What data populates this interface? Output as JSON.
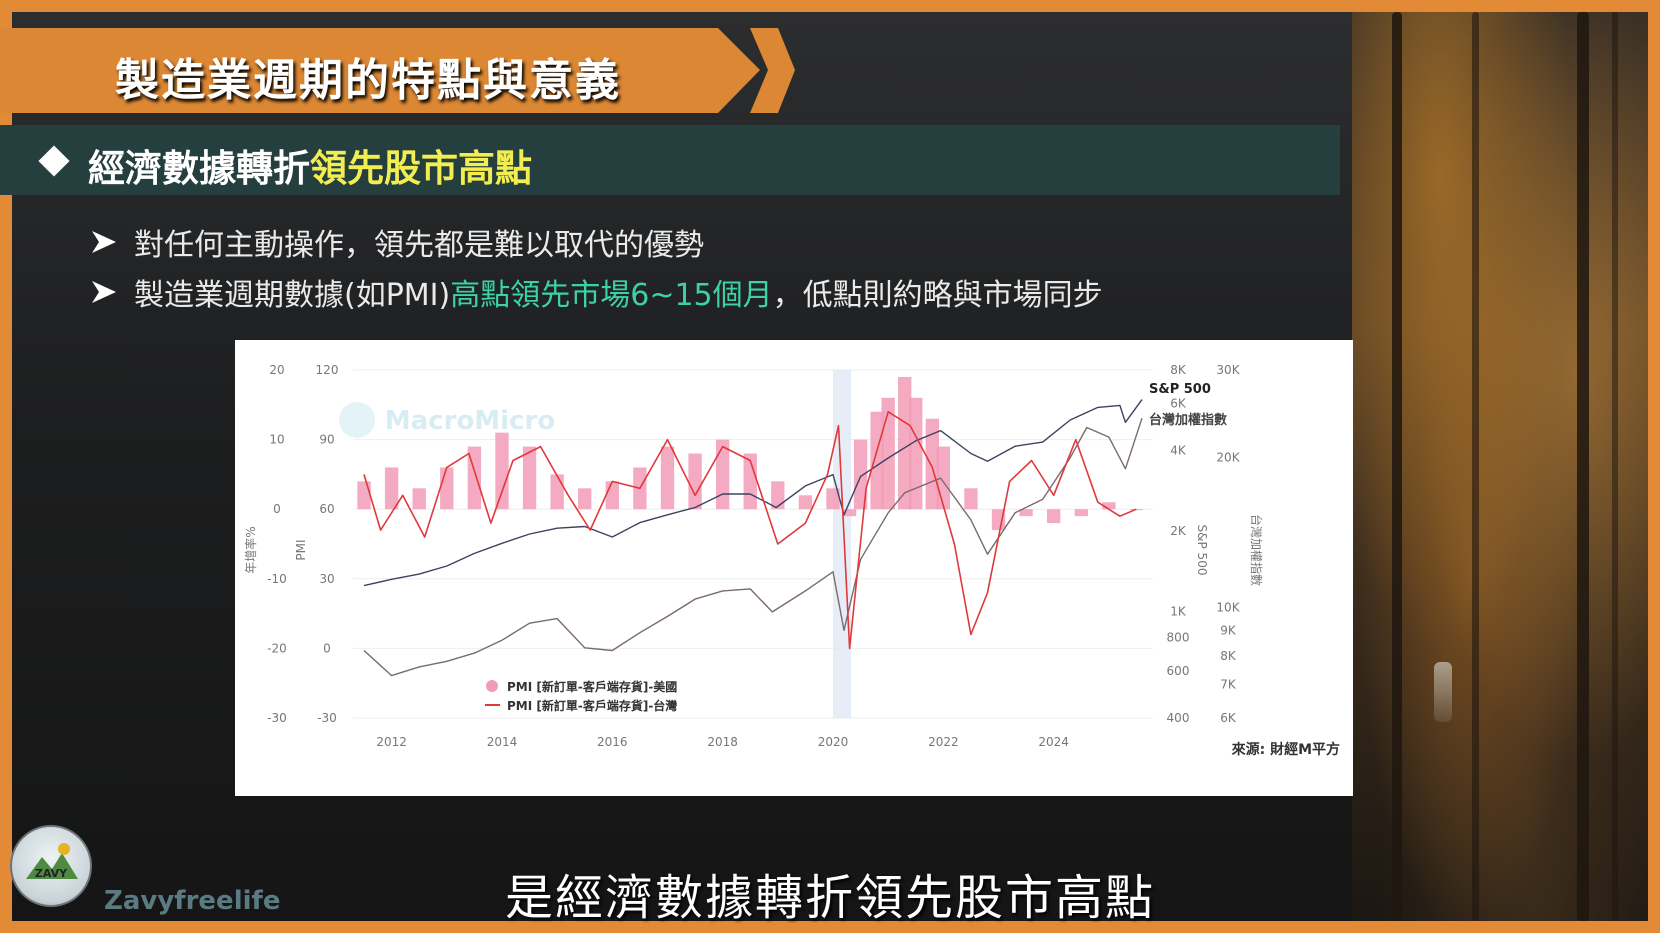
{
  "title": "製造業週期的特點與意義",
  "subheading": {
    "prefix": "經濟數據轉折",
    "highlight": "領先股市高點"
  },
  "bullets": [
    {
      "segments": [
        {
          "text": "對任何主動操作，領先都是難以取代的優勢",
          "hl": false
        }
      ]
    },
    {
      "segments": [
        {
          "text": "製造業週期數據(如PMI)",
          "hl": false
        },
        {
          "text": "高點領先市場6~15個月",
          "hl": true
        },
        {
          "text": "，低點則約略與市場同步",
          "hl": false
        }
      ]
    }
  ],
  "colors": {
    "accent_orange": "#dc8733",
    "subbar": "#243f3e",
    "highlight_yellow": "#f2ee52",
    "highlight_green": "#3cd2a5",
    "us_pmi": "#f29bb6",
    "tw_pmi": "#e0393c",
    "sp500": "#3c4360",
    "taiex": "#7a6a70"
  },
  "chart_data": {
    "type": "line",
    "watermark": "MacroMicro",
    "source": "來源: 財經M平方",
    "x_ticks": [
      "2012",
      "2014",
      "2016",
      "2018",
      "2020",
      "2022",
      "2024"
    ],
    "axes": {
      "left_outer": {
        "label": "年增率%",
        "ticks": [
          "20",
          "10",
          "0",
          "-10",
          "-20",
          "-30"
        ],
        "range": [
          -30,
          20
        ]
      },
      "left_inner": {
        "label": "PMI",
        "ticks": [
          "120",
          "90",
          "60",
          "30",
          "0",
          "-30"
        ],
        "range": [
          -30,
          120
        ]
      },
      "right_inner": {
        "label": "S&P 500",
        "ticks": [
          "8K",
          "6K",
          "4K",
          "2K",
          "1K",
          "800",
          "600",
          "400"
        ],
        "scale": "log"
      },
      "right_outer": {
        "label": "台灣加權指數",
        "ticks": [
          "30K",
          "20K",
          "10K",
          "9K",
          "8K",
          "7K",
          "6K"
        ],
        "scale": "log"
      }
    },
    "shaded_period": {
      "from": 2020.0,
      "to": 2020.33
    },
    "series": [
      {
        "name": "S&P 500",
        "kind": "line",
        "x": [
          2011.5,
          2012.0,
          2012.5,
          2013.0,
          2013.5,
          2014.0,
          2014.5,
          2015.0,
          2015.5,
          2016.0,
          2016.5,
          2017.0,
          2017.5,
          2018.0,
          2018.5,
          2018.97,
          2019.5,
          2020.0,
          2020.2,
          2020.5,
          2021.0,
          2021.5,
          2021.95,
          2022.5,
          2022.8,
          2023.3,
          2023.8,
          2024.3,
          2024.8,
          2025.2,
          2025.3,
          2025.6
        ],
        "values": [
          1250,
          1320,
          1380,
          1480,
          1650,
          1800,
          1950,
          2050,
          2080,
          1900,
          2150,
          2300,
          2450,
          2750,
          2750,
          2450,
          2950,
          3250,
          2300,
          3200,
          3750,
          4350,
          4750,
          3900,
          3650,
          4150,
          4300,
          5200,
          5800,
          5900,
          5100,
          6200
        ]
      },
      {
        "name": "台灣加權指數",
        "kind": "line",
        "x": [
          2011.5,
          2012.0,
          2012.5,
          2013.0,
          2013.5,
          2014.0,
          2014.5,
          2015.0,
          2015.5,
          2016.0,
          2016.5,
          2017.0,
          2017.5,
          2018.0,
          2018.5,
          2018.9,
          2019.5,
          2020.0,
          2020.2,
          2020.5,
          2021.0,
          2021.3,
          2021.95,
          2022.5,
          2022.8,
          2023.3,
          2023.8,
          2024.3,
          2024.6,
          2025.0,
          2025.3,
          2025.6
        ],
        "values": [
          8200,
          7300,
          7600,
          7800,
          8100,
          8600,
          9300,
          9500,
          8300,
          8200,
          8900,
          9600,
          10400,
          10800,
          10900,
          9800,
          10800,
          11800,
          9000,
          12500,
          15500,
          17000,
          18200,
          15000,
          12800,
          15500,
          16500,
          20000,
          23000,
          22000,
          19000,
          24000
        ]
      },
      {
        "name": "PMI [新訂單-客戶端存貨]-美國",
        "kind": "bar",
        "x": [
          2011.5,
          2012.0,
          2012.5,
          2013.0,
          2013.5,
          2014.0,
          2014.5,
          2015.0,
          2015.5,
          2016.0,
          2016.5,
          2017.0,
          2017.5,
          2018.0,
          2018.5,
          2019.0,
          2019.5,
          2020.0,
          2020.3,
          2020.5,
          2020.8,
          2021.0,
          2021.3,
          2021.5,
          2021.8,
          2022.0,
          2022.5,
          2023.0,
          2023.5,
          2024.0,
          2024.5,
          2025.0,
          2025.5
        ],
        "values": [
          4,
          6,
          3,
          6,
          9,
          11,
          9,
          5,
          3,
          4,
          6,
          9,
          8,
          10,
          8,
          4,
          2,
          3,
          -1,
          10,
          14,
          16,
          19,
          16,
          13,
          9,
          3,
          -3,
          -1,
          -2,
          -1,
          1,
          0
        ]
      },
      {
        "name": "PMI [新訂單-客戶端存貨]-台灣",
        "kind": "line",
        "x": [
          2011.5,
          2011.8,
          2012.2,
          2012.6,
          2013.0,
          2013.4,
          2013.8,
          2014.2,
          2014.7,
          2015.2,
          2015.6,
          2016.0,
          2016.5,
          2017.0,
          2017.5,
          2018.0,
          2018.5,
          2019.0,
          2019.5,
          2019.9,
          2020.1,
          2020.3,
          2020.6,
          2021.0,
          2021.4,
          2021.8,
          2022.2,
          2022.5,
          2022.8,
          2023.2,
          2023.6,
          2024.0,
          2024.4,
          2024.8,
          2025.2,
          2025.5
        ],
        "values": [
          5,
          -3,
          2,
          -4,
          6,
          8,
          -2,
          7,
          9,
          2,
          -3,
          4,
          3,
          10,
          2,
          9,
          7,
          -5,
          -2,
          5,
          12,
          -20,
          3,
          14,
          12,
          6,
          -5,
          -18,
          -12,
          4,
          7,
          2,
          10,
          1,
          -1,
          0
        ]
      }
    ]
  },
  "caption": "是經濟數據轉折領先股市高點",
  "channel": "Zavyfreelife",
  "logo_text": "ZAVY"
}
